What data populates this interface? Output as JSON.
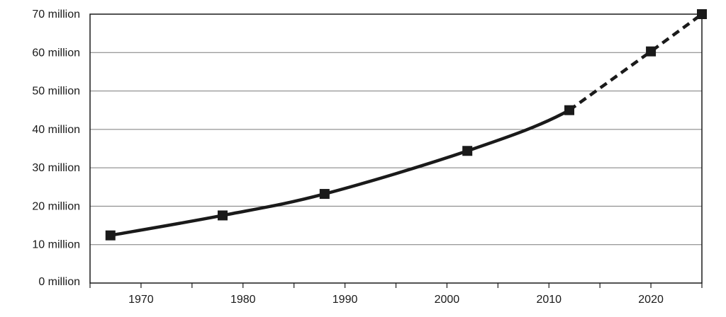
{
  "chart_data": {
    "type": "line",
    "title": "",
    "xlabel": "",
    "ylabel": "",
    "xlim": [
      1965,
      2025
    ],
    "ylim": [
      0,
      70
    ],
    "x_ticks": [
      1970,
      1980,
      1990,
      2000,
      2010,
      2020
    ],
    "x_tick_labels": [
      "1970",
      "1980",
      "1990",
      "2000",
      "2010",
      "2020"
    ],
    "y_ticks": [
      0,
      10,
      20,
      30,
      40,
      50,
      60,
      70
    ],
    "y_tick_labels": [
      "0 million",
      "10 million",
      "20 million",
      "30 million",
      "40 million",
      "50 million",
      "60 million",
      "70 million"
    ],
    "grid": true,
    "legend": "none",
    "series": [
      {
        "marker": "square",
        "color": "#1a1a1a",
        "points": [
          {
            "x": 1967,
            "y": 12.4,
            "style": "solid"
          },
          {
            "x": 1978,
            "y": 17.6,
            "style": "solid"
          },
          {
            "x": 1988,
            "y": 23.2,
            "style": "solid"
          },
          {
            "x": 2002,
            "y": 34.4,
            "style": "solid"
          },
          {
            "x": 2012,
            "y": 45.0,
            "style": "dashed"
          },
          {
            "x": 2020,
            "y": 60.3,
            "style": "dashed"
          },
          {
            "x": 2025,
            "y": 70.0,
            "style": "dashed"
          }
        ]
      }
    ]
  }
}
